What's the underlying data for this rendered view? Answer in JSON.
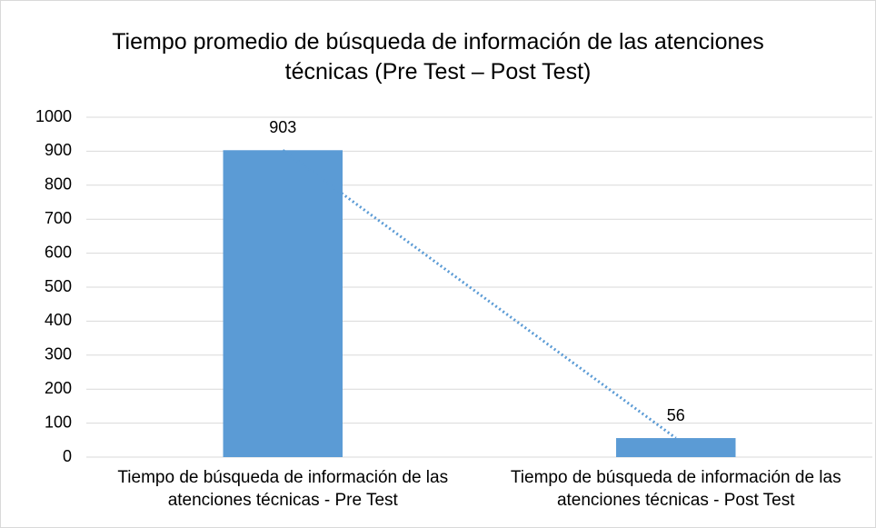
{
  "chart_data": {
    "type": "bar",
    "title": "Tiempo promedio de búsqueda de información de las atenciones técnicas (Pre Test – Post Test)",
    "categories": [
      "Tiempo de búsqueda de información de las atenciones técnicas - Pre Test",
      "Tiempo de búsqueda de información de las atenciones técnicas - Post Test"
    ],
    "values": [
      903,
      56
    ],
    "color": "#5b9bd5",
    "ylim": [
      0,
      1000
    ],
    "yticks": [
      0,
      100,
      200,
      300,
      400,
      500,
      600,
      700,
      800,
      900,
      1000
    ],
    "grid": true,
    "data_labels": true,
    "trendline": true
  }
}
